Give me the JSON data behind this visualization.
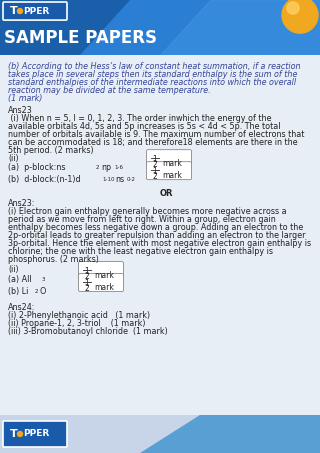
{
  "header_blue_dark": "#1a5faa",
  "header_blue_mid": "#2a7fd4",
  "header_blue_light": "#4a9be8",
  "topper_box_color": "#1a5aab",
  "gold_color": "#f0a820",
  "gold_shine": "#ffd060",
  "footer_left_color": "#c8d4e8",
  "footer_right_color": "#5a9fd4",
  "body_bg": "#ffffff",
  "page_bg": "#e8eef5",
  "text_dark": "#222222",
  "text_blue": "#223399",
  "sample_papers_color": "#1a4a99",
  "lines_top": [
    [
      "(b) According to the Hess’s law of constant heat summation, if a reaction",
      "#334499"
    ],
    [
      "takes place in several steps then its standard enthalpy is the sum of the",
      "#334499"
    ],
    [
      "standard enthalpies of the intermediate reactions into which the overall",
      "#334499"
    ],
    [
      "reaction may be divided at the same temperature.",
      "#334499"
    ],
    [
      "(1 mark)",
      "#334499"
    ]
  ],
  "ans23_lines": [
    "Ans23",
    " (i) When n = 5, l = 0, 1, 2, 3. The order inwhich the energy of the",
    "available orbitals 4d, 5s and 5p increases is 5s < 4d < 5p. The total",
    "number of orbitals available is 9. The maximum number of electrons that",
    "can be accommodated is 18; and therefore18 elements are there in the",
    "5th period. (2 marks)",
    "(ii)"
  ],
  "ans23b_lines": [
    "Ans23:",
    "(i) Electron gain enthalpy generally becomes more negative across a",
    "period as we move from left to right. Within a group, electron gain",
    "enthalpy becomes less negative down a group. Adding an electron to the",
    "2p-orbital leads to greater repulsion than adding an electron to the larger",
    "3p-orbital. Hence the element with most negative electron gain enthalpy is",
    "chlorine; the one with the least negative electron gain enthalpy is",
    "phosphorus. (2 marks)"
  ],
  "ans24_lines": [
    "Ans24:",
    "(i) 2-Phenylethanoic acid   (1 mark)",
    "(ii) Propane-1, 2, 3-triol    (1 mark)",
    "(iii) 3-Bromobutanoyl chloride  (1 mark)"
  ]
}
